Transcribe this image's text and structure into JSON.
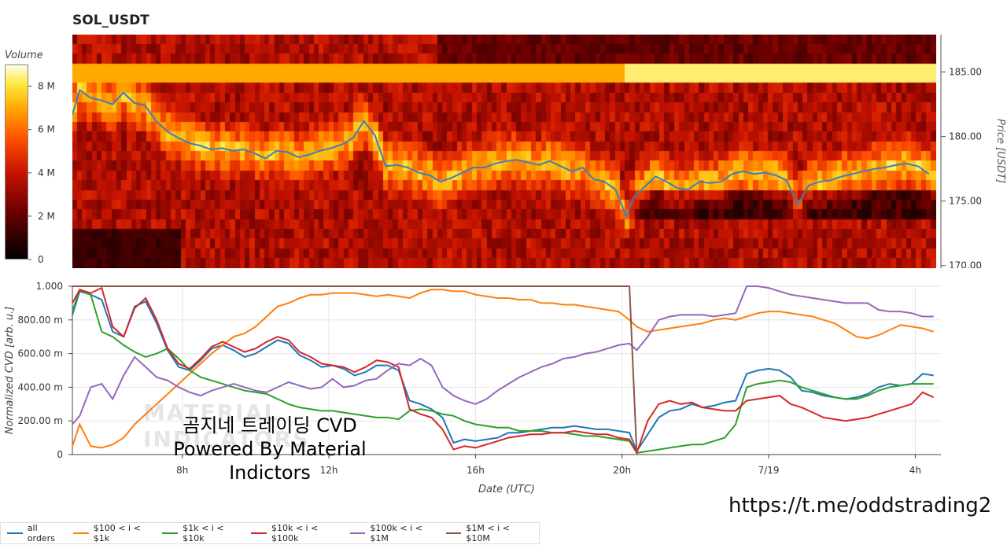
{
  "title": "SOL_USDT",
  "colorbar": {
    "title": "Volume",
    "ticks": [
      "0",
      "2 M",
      "4 M",
      "6 M",
      "8 M"
    ],
    "tick_values": [
      0,
      2,
      4,
      6,
      8
    ],
    "max": 9
  },
  "watermark": {
    "korean": "곰지네 트레이딩 CVD",
    "powered": "Powered By Material Indictors",
    "bg": "MATERIAL INDICATORS"
  },
  "url": "https://t.me/oddstrading2",
  "colors": {
    "price_line": "#3b7fbf"
  },
  "chart_data": [
    {
      "type": "heatmap",
      "title": "SOL_USDT",
      "ylabel": "Price [USDT]",
      "ylim": [
        169.8,
        187.9
      ],
      "yticks": [
        "170.00",
        "175.00",
        "180.00",
        "185.00"
      ],
      "ytick_values": [
        170,
        175,
        180,
        185
      ],
      "price_series": {
        "name": "",
        "x": [
          5.0,
          5.2,
          5.5,
          5.8,
          6.1,
          6.4,
          6.7,
          7.0,
          7.3,
          7.6,
          7.9,
          8.2,
          8.5,
          8.8,
          9.1,
          9.4,
          9.7,
          10.0,
          10.3,
          10.6,
          10.9,
          11.2,
          11.5,
          11.8,
          12.1,
          12.4,
          12.7,
          13.0,
          13.3,
          13.6,
          13.9,
          14.2,
          14.5,
          14.8,
          15.1,
          15.4,
          15.7,
          16.0,
          16.3,
          16.6,
          16.9,
          17.2,
          17.5,
          17.8,
          18.1,
          18.4,
          18.7,
          19.0,
          19.3,
          19.6,
          19.9,
          20.2,
          20.4,
          20.7,
          21.0,
          21.3,
          21.6,
          21.9,
          22.2,
          22.5,
          22.8,
          23.1,
          23.4,
          23.7,
          24.0,
          24.3,
          24.6,
          24.9,
          25.2,
          25.5,
          25.8,
          26.1,
          26.4,
          26.7,
          27.0,
          27.3,
          27.6,
          27.9,
          28.2,
          28.5
        ],
        "y": [
          181.7,
          183.6,
          183.0,
          182.8,
          182.5,
          183.4,
          182.6,
          182.4,
          181.2,
          180.4,
          179.9,
          179.5,
          179.3,
          179.0,
          179.1,
          178.9,
          179.0,
          178.7,
          178.3,
          178.9,
          178.8,
          178.4,
          178.6,
          178.9,
          179.1,
          179.4,
          179.9,
          181.2,
          180.1,
          177.7,
          177.8,
          177.6,
          177.2,
          177.0,
          176.5,
          176.8,
          177.2,
          177.6,
          177.6,
          177.9,
          178.1,
          178.2,
          178.0,
          177.8,
          178.1,
          177.7,
          177.3,
          177.6,
          176.7,
          176.5,
          175.9,
          173.8,
          175.3,
          176.1,
          176.9,
          176.5,
          176.0,
          175.9,
          176.5,
          176.4,
          176.5,
          177.1,
          177.3,
          177.1,
          177.2,
          177.0,
          176.6,
          174.7,
          176.2,
          176.5,
          176.6,
          176.9,
          177.1,
          177.3,
          177.5,
          177.6,
          177.8,
          177.9,
          177.7,
          177.1
        ]
      }
    },
    {
      "type": "line",
      "xlabel": "Date (UTC)",
      "ylabel": "Normalized CVD [arb. u.]",
      "xlim": [
        5.0,
        28.7
      ],
      "ylim": [
        0,
        1.0
      ],
      "xticks": [
        "8h",
        "12h",
        "16h",
        "20h",
        "7/19",
        "4h"
      ],
      "xtick_values": [
        8,
        12,
        16,
        20,
        24,
        28
      ],
      "yticks": [
        "0",
        "200.00 m",
        "400.00 m",
        "600.00 m",
        "800.00 m",
        "1.000"
      ],
      "ytick_values": [
        0,
        0.2,
        0.4,
        0.6,
        0.8,
        1.0
      ],
      "x": [
        5.0,
        5.2,
        5.5,
        5.8,
        6.1,
        6.4,
        6.7,
        7.0,
        7.3,
        7.6,
        7.9,
        8.2,
        8.5,
        8.8,
        9.1,
        9.4,
        9.7,
        10.0,
        10.3,
        10.6,
        10.9,
        11.2,
        11.5,
        11.8,
        12.1,
        12.4,
        12.7,
        13.0,
        13.3,
        13.6,
        13.9,
        14.2,
        14.5,
        14.8,
        15.1,
        15.4,
        15.7,
        16.0,
        16.3,
        16.6,
        16.9,
        17.2,
        17.5,
        17.8,
        18.1,
        18.4,
        18.7,
        19.0,
        19.3,
        19.6,
        19.9,
        20.2,
        20.4,
        20.7,
        21.0,
        21.3,
        21.6,
        21.9,
        22.2,
        22.5,
        22.8,
        23.1,
        23.4,
        23.7,
        24.0,
        24.3,
        24.6,
        24.9,
        25.2,
        25.5,
        25.8,
        26.1,
        26.4,
        26.7,
        27.0,
        27.3,
        27.6,
        27.9,
        28.2,
        28.5
      ],
      "series": [
        {
          "name": "all orders",
          "color": "#1f77b4",
          "values": [
            0.83,
            0.97,
            0.95,
            0.92,
            0.73,
            0.7,
            0.88,
            0.91,
            0.78,
            0.62,
            0.52,
            0.5,
            0.56,
            0.63,
            0.65,
            0.62,
            0.58,
            0.6,
            0.64,
            0.68,
            0.66,
            0.59,
            0.56,
            0.52,
            0.53,
            0.51,
            0.47,
            0.49,
            0.53,
            0.53,
            0.5,
            0.32,
            0.3,
            0.27,
            0.22,
            0.07,
            0.09,
            0.08,
            0.09,
            0.1,
            0.13,
            0.13,
            0.14,
            0.15,
            0.16,
            0.16,
            0.17,
            0.16,
            0.15,
            0.15,
            0.14,
            0.13,
            0.02,
            0.12,
            0.22,
            0.26,
            0.27,
            0.3,
            0.28,
            0.29,
            0.31,
            0.32,
            0.48,
            0.5,
            0.51,
            0.5,
            0.46,
            0.38,
            0.37,
            0.35,
            0.34,
            0.33,
            0.34,
            0.36,
            0.4,
            0.42,
            0.41,
            0.42,
            0.48,
            0.47
          ]
        },
        {
          "name": "$100 < i < $1k",
          "color": "#ff7f0e",
          "values": [
            0.05,
            0.18,
            0.05,
            0.04,
            0.06,
            0.1,
            0.18,
            0.24,
            0.3,
            0.36,
            0.42,
            0.48,
            0.54,
            0.6,
            0.65,
            0.7,
            0.72,
            0.76,
            0.82,
            0.88,
            0.9,
            0.93,
            0.95,
            0.95,
            0.96,
            0.96,
            0.96,
            0.95,
            0.94,
            0.95,
            0.94,
            0.93,
            0.96,
            0.98,
            0.98,
            0.97,
            0.97,
            0.95,
            0.94,
            0.93,
            0.93,
            0.92,
            0.92,
            0.9,
            0.9,
            0.89,
            0.89,
            0.88,
            0.87,
            0.86,
            0.85,
            0.8,
            0.76,
            0.73,
            0.74,
            0.75,
            0.76,
            0.77,
            0.78,
            0.8,
            0.81,
            0.8,
            0.82,
            0.84,
            0.85,
            0.85,
            0.84,
            0.83,
            0.82,
            0.8,
            0.78,
            0.74,
            0.7,
            0.69,
            0.71,
            0.74,
            0.77,
            0.76,
            0.75,
            0.73
          ]
        },
        {
          "name": "$1k < i < $10k",
          "color": "#2ca02c",
          "values": [
            0.85,
            0.98,
            0.95,
            0.73,
            0.7,
            0.65,
            0.61,
            0.58,
            0.6,
            0.63,
            0.57,
            0.5,
            0.46,
            0.44,
            0.42,
            0.4,
            0.38,
            0.37,
            0.36,
            0.33,
            0.3,
            0.28,
            0.27,
            0.26,
            0.26,
            0.25,
            0.24,
            0.23,
            0.22,
            0.22,
            0.21,
            0.26,
            0.27,
            0.26,
            0.24,
            0.23,
            0.2,
            0.18,
            0.17,
            0.16,
            0.16,
            0.14,
            0.14,
            0.14,
            0.13,
            0.13,
            0.12,
            0.11,
            0.11,
            0.1,
            0.09,
            0.08,
            0.01,
            0.02,
            0.03,
            0.04,
            0.05,
            0.06,
            0.06,
            0.08,
            0.1,
            0.18,
            0.4,
            0.42,
            0.43,
            0.44,
            0.43,
            0.4,
            0.38,
            0.36,
            0.34,
            0.33,
            0.33,
            0.35,
            0.38,
            0.4,
            0.41,
            0.42,
            0.42,
            0.42
          ]
        },
        {
          "name": "$10k < i < $100k",
          "color": "#d62728",
          "values": [
            0.9,
            0.98,
            0.96,
            0.99,
            0.76,
            0.7,
            0.87,
            0.93,
            0.8,
            0.63,
            0.54,
            0.51,
            0.57,
            0.64,
            0.67,
            0.64,
            0.61,
            0.63,
            0.67,
            0.7,
            0.68,
            0.61,
            0.58,
            0.54,
            0.53,
            0.52,
            0.49,
            0.52,
            0.56,
            0.55,
            0.52,
            0.27,
            0.24,
            0.22,
            0.15,
            0.03,
            0.05,
            0.04,
            0.06,
            0.08,
            0.1,
            0.11,
            0.12,
            0.12,
            0.13,
            0.13,
            0.14,
            0.13,
            0.12,
            0.12,
            0.1,
            0.09,
            0.01,
            0.2,
            0.3,
            0.32,
            0.3,
            0.31,
            0.28,
            0.27,
            0.26,
            0.26,
            0.32,
            0.33,
            0.34,
            0.35,
            0.3,
            0.28,
            0.25,
            0.22,
            0.21,
            0.2,
            0.21,
            0.22,
            0.24,
            0.26,
            0.28,
            0.3,
            0.37,
            0.34
          ]
        },
        {
          "name": "$100k < i < $1M",
          "color": "#9467bd",
          "values": [
            0.18,
            0.23,
            0.4,
            0.42,
            0.33,
            0.47,
            0.58,
            0.52,
            0.46,
            0.44,
            0.4,
            0.37,
            0.35,
            0.38,
            0.4,
            0.42,
            0.4,
            0.38,
            0.37,
            0.4,
            0.43,
            0.41,
            0.39,
            0.4,
            0.45,
            0.4,
            0.41,
            0.44,
            0.45,
            0.5,
            0.54,
            0.53,
            0.57,
            0.53,
            0.4,
            0.35,
            0.32,
            0.3,
            0.33,
            0.38,
            0.42,
            0.46,
            0.49,
            0.52,
            0.54,
            0.57,
            0.58,
            0.6,
            0.61,
            0.63,
            0.65,
            0.66,
            0.62,
            0.7,
            0.8,
            0.82,
            0.83,
            0.83,
            0.83,
            0.82,
            0.83,
            0.84,
            1.0,
            1.0,
            0.99,
            0.97,
            0.95,
            0.94,
            0.93,
            0.92,
            0.91,
            0.9,
            0.9,
            0.9,
            0.86,
            0.85,
            0.85,
            0.84,
            0.82,
            0.82
          ]
        },
        {
          "name": "$1M < i < $10M",
          "color": "#8c564b",
          "values": [
            1.0,
            1.0,
            1.0,
            1.0,
            1.0,
            1.0,
            1.0,
            1.0,
            1.0,
            1.0,
            1.0,
            1.0,
            1.0,
            1.0,
            1.0,
            1.0,
            1.0,
            1.0,
            1.0,
            1.0,
            1.0,
            1.0,
            1.0,
            1.0,
            1.0,
            1.0,
            1.0,
            1.0,
            1.0,
            1.0,
            1.0,
            1.0,
            1.0,
            1.0,
            1.0,
            1.0,
            1.0,
            1.0,
            1.0,
            1.0,
            1.0,
            1.0,
            1.0,
            1.0,
            1.0,
            1.0,
            1.0,
            1.0,
            1.0,
            1.0,
            1.0,
            1.0,
            0.0,
            null,
            null,
            null,
            null,
            null,
            null,
            null,
            null,
            null,
            null,
            null,
            null,
            null,
            null,
            null,
            null,
            null,
            null,
            null,
            null,
            null,
            null,
            null,
            null,
            null,
            null,
            null
          ]
        }
      ]
    }
  ]
}
